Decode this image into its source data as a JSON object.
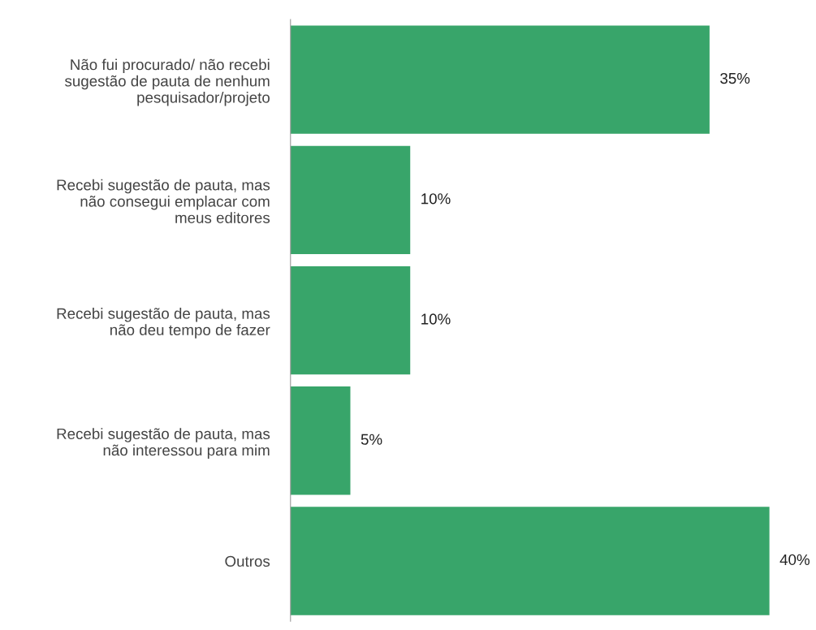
{
  "chart_data": {
    "type": "bar",
    "orientation": "horizontal",
    "categories": [
      "Não fui procurado/ não recebi\nsugestão de pauta de nenhum\npesquisador/projeto",
      "Recebi sugestão de pauta, mas\nnão consegui emplacar com\nmeus editores",
      "Recebi sugestão de pauta, mas\nnão deu tempo de fazer",
      "Recebi sugestão de pauta, mas\nnão interessou para mim",
      "Outros"
    ],
    "values": [
      35,
      10,
      10,
      5,
      40
    ],
    "value_labels": [
      "35%",
      "10%",
      "10%",
      "5%",
      "40%"
    ],
    "color": "#38a56a"
  }
}
